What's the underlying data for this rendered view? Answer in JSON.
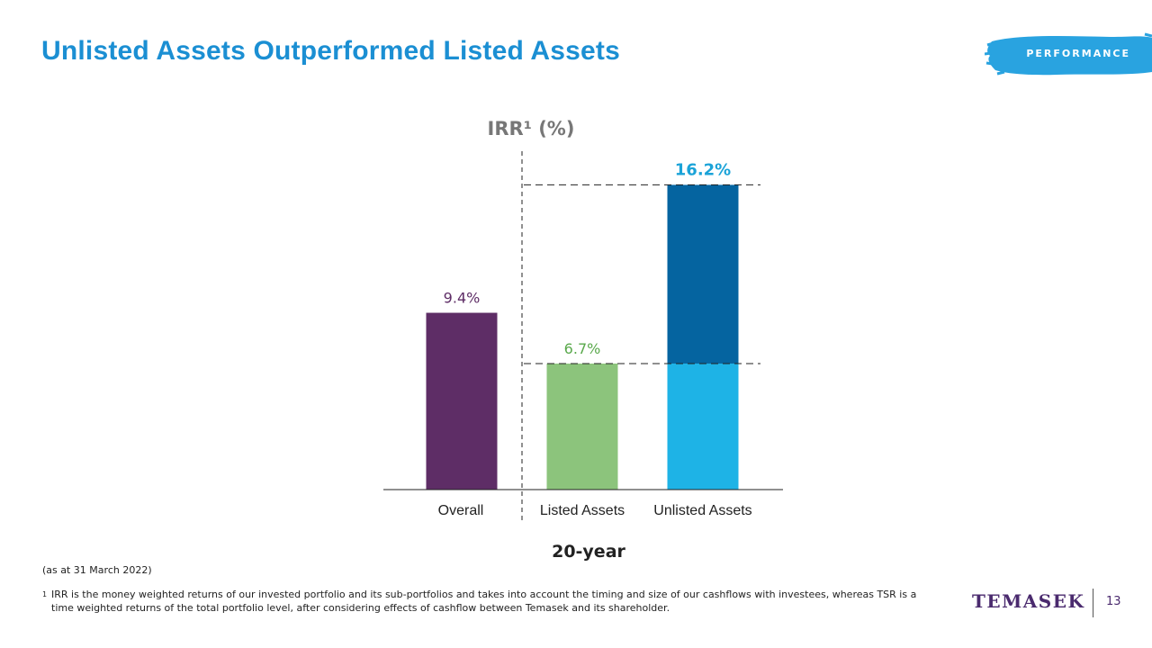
{
  "slide": {
    "title": "Unlisted Assets Outperformed Listed Assets",
    "section_tag": "PERFORMANCE",
    "as_of": "(as at 31 March 2022)",
    "footnote_mark": "1",
    "footnote": "IRR is the money weighted returns of our invested portfolio and its sub-portfolios and takes into account the timing and size of our cashflows with investees, whereas TSR is a time weighted returns of the total portfolio level, after considering effects of cashflow between Temasek and its shareholder.",
    "brand": "TEMASEK",
    "page_number": "13"
  },
  "colors": {
    "title": "#1b8fd3",
    "tag_brush": "#29a3e0",
    "overall": "#5e2d66",
    "listed": "#8cc47c",
    "unlisted_base": "#1eb3e6",
    "unlisted_top": "#0564a0",
    "label_overall": "#5e2d66",
    "label_listed": "#5aa94c",
    "label_unlisted": "#1ba3d8"
  },
  "chart_data": {
    "type": "bar",
    "title": "IRR¹ (%)",
    "xlabel": "20-year",
    "categories": [
      "Overall",
      "Listed Assets",
      "Unlisted Assets"
    ],
    "values": [
      9.4,
      6.7,
      16.2
    ],
    "data_labels": [
      "9.4%",
      "6.7%",
      "16.2%"
    ],
    "unlisted_stack": {
      "base": 6.7,
      "increment": 9.5
    },
    "ylim": [
      0,
      18
    ],
    "grid": false,
    "legend": "none"
  }
}
